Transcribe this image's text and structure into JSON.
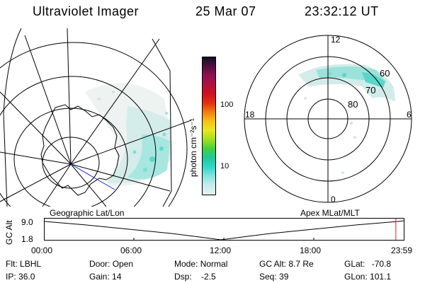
{
  "header": {
    "instrument": "Ultraviolet Imager",
    "date": "25 Mar 07",
    "time": "23:32:12 UT"
  },
  "colorbar": {
    "unit_label": "photon cm⁻²s⁻¹",
    "ticks": [
      "100",
      "10"
    ],
    "scale": "log",
    "colors": [
      "#e6f0f0",
      "#c8ecec",
      "#88e4e0",
      "#30d8c8",
      "#20c89c",
      "#40d040",
      "#a0e020",
      "#e8e820",
      "#f8c018",
      "#f08010",
      "#e03010",
      "#d01020",
      "#b01040",
      "#901050",
      "#501040",
      "#101020"
    ]
  },
  "polar_plot": {
    "mlt_labels": [
      "12",
      "18",
      "6",
      "0"
    ],
    "mlat_labels": [
      "60",
      "70",
      "80"
    ]
  },
  "map_labels": {
    "left": "Geographic Lat/Lon",
    "right": "Apex MLat/MLT"
  },
  "timeline": {
    "axis_label": "GC Alt",
    "y_ticks": [
      "9.0",
      "1.8"
    ],
    "x_ticks": [
      "00:00",
      "06:00",
      "12:00",
      "18:00",
      "23:59"
    ],
    "current_marker_fraction": 0.978
  },
  "status": {
    "flt_label": "Flt:",
    "flt_value": "LBHL",
    "ip_label": "IP:",
    "ip_value": "36.0",
    "door_label": "Door:",
    "door_value": "Open",
    "gain_label": "Gain:",
    "gain_value": "14",
    "mode_label": "Mode:",
    "mode_value": "Normal",
    "dsp_label": "Dsp:",
    "dsp_value": "-2.5",
    "gcalt_label": "GC Alt:",
    "gcalt_value": "8.7 Re",
    "seq_label": "Seq:",
    "seq_value": "39",
    "glat_label": "GLat:",
    "glat_value": "-70.8",
    "glon_label": "GLon:",
    "glon_value": "101.1"
  }
}
